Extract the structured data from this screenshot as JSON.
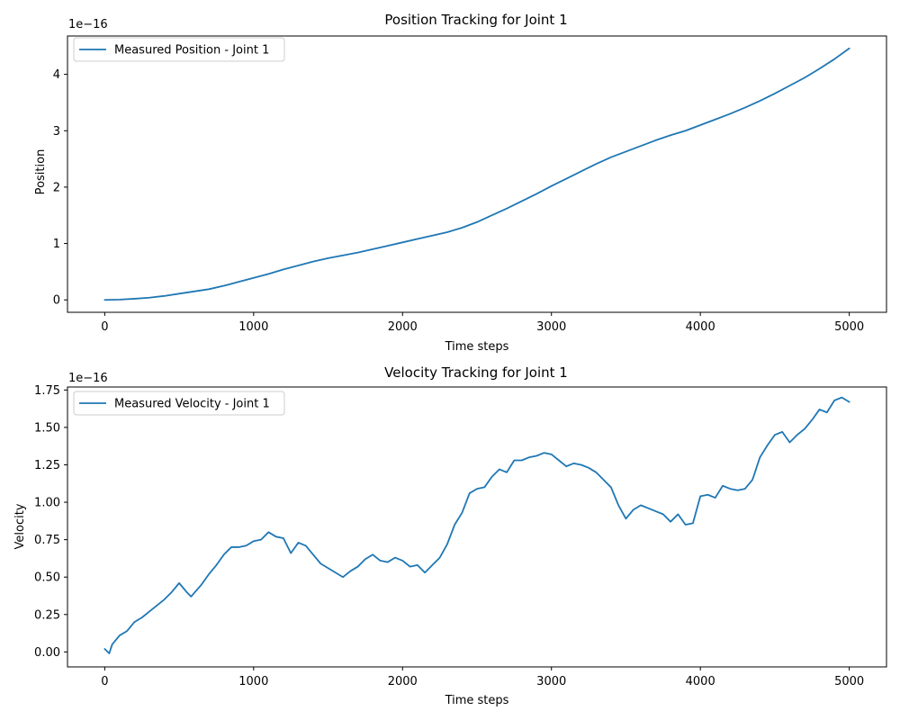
{
  "chart_data": [
    {
      "type": "line",
      "title": "Position Tracking for Joint 1",
      "xlabel": "Time steps",
      "ylabel": "Position",
      "offset_label": "1e−16",
      "xlim": [
        -250,
        5250
      ],
      "ylim": [
        -0.22,
        4.68
      ],
      "xticks": [
        0,
        1000,
        2000,
        3000,
        4000,
        5000
      ],
      "xtick_labels": [
        "0",
        "1000",
        "2000",
        "3000",
        "4000",
        "5000"
      ],
      "yticks": [
        0,
        1,
        2,
        3,
        4
      ],
      "ytick_labels": [
        "0",
        "1",
        "2",
        "3",
        "4"
      ],
      "legend_position": "upper-left",
      "color": "#1f77b4",
      "series": [
        {
          "name": "Measured Position - Joint 1",
          "x": [
            0,
            100,
            200,
            300,
            400,
            500,
            600,
            700,
            800,
            900,
            1000,
            1100,
            1200,
            1300,
            1400,
            1500,
            1600,
            1700,
            1800,
            1900,
            2000,
            2100,
            2200,
            2300,
            2400,
            2500,
            2600,
            2700,
            2800,
            2900,
            3000,
            3100,
            3200,
            3300,
            3400,
            3500,
            3600,
            3700,
            3800,
            3900,
            4000,
            4100,
            4200,
            4300,
            4400,
            4500,
            4600,
            4700,
            4800,
            4900,
            5000
          ],
          "values": [
            0.0,
            0.005,
            0.02,
            0.04,
            0.07,
            0.11,
            0.15,
            0.19,
            0.25,
            0.32,
            0.39,
            0.46,
            0.54,
            0.61,
            0.68,
            0.74,
            0.79,
            0.84,
            0.9,
            0.96,
            1.02,
            1.08,
            1.14,
            1.2,
            1.28,
            1.38,
            1.5,
            1.62,
            1.75,
            1.88,
            2.02,
            2.15,
            2.28,
            2.41,
            2.53,
            2.63,
            2.73,
            2.83,
            2.92,
            3.0,
            3.1,
            3.2,
            3.3,
            3.41,
            3.53,
            3.66,
            3.8,
            3.94,
            4.1,
            4.27,
            4.46
          ]
        }
      ]
    },
    {
      "type": "line",
      "title": "Velocity Tracking for Joint 1",
      "xlabel": "Time steps",
      "ylabel": "Velocity",
      "offset_label": "1e−16",
      "xlim": [
        -250,
        5250
      ],
      "ylim": [
        -0.1,
        1.77
      ],
      "xticks": [
        0,
        1000,
        2000,
        3000,
        4000,
        5000
      ],
      "xtick_labels": [
        "0",
        "1000",
        "2000",
        "3000",
        "4000",
        "5000"
      ],
      "yticks": [
        0.0,
        0.25,
        0.5,
        0.75,
        1.0,
        1.25,
        1.5,
        1.75
      ],
      "ytick_labels": [
        "0.00",
        "0.25",
        "0.50",
        "0.75",
        "1.00",
        "1.25",
        "1.50",
        "1.75"
      ],
      "legend_position": "upper-left",
      "color": "#1f77b4",
      "series": [
        {
          "name": "Measured Velocity - Joint 1",
          "x": [
            0,
            30,
            50,
            100,
            150,
            200,
            250,
            300,
            350,
            400,
            450,
            500,
            550,
            580,
            650,
            700,
            750,
            800,
            850,
            900,
            950,
            1000,
            1050,
            1100,
            1150,
            1200,
            1250,
            1300,
            1350,
            1400,
            1450,
            1500,
            1550,
            1600,
            1650,
            1700,
            1750,
            1800,
            1850,
            1900,
            1950,
            2000,
            2050,
            2100,
            2150,
            2200,
            2250,
            2300,
            2350,
            2400,
            2450,
            2500,
            2550,
            2600,
            2650,
            2700,
            2750,
            2800,
            2850,
            2900,
            2950,
            3000,
            3050,
            3100,
            3150,
            3200,
            3250,
            3300,
            3350,
            3400,
            3450,
            3500,
            3550,
            3600,
            3650,
            3700,
            3750,
            3800,
            3850,
            3900,
            3950,
            4000,
            4050,
            4100,
            4150,
            4200,
            4250,
            4300,
            4350,
            4400,
            4450,
            4500,
            4550,
            4600,
            4650,
            4700,
            4750,
            4800,
            4850,
            4900,
            4950,
            5000
          ],
          "values": [
            0.02,
            -0.01,
            0.05,
            0.11,
            0.14,
            0.2,
            0.23,
            0.27,
            0.31,
            0.35,
            0.4,
            0.46,
            0.4,
            0.37,
            0.45,
            0.52,
            0.58,
            0.65,
            0.7,
            0.7,
            0.71,
            0.74,
            0.75,
            0.8,
            0.77,
            0.76,
            0.66,
            0.73,
            0.71,
            0.65,
            0.59,
            0.56,
            0.53,
            0.5,
            0.54,
            0.57,
            0.62,
            0.65,
            0.61,
            0.6,
            0.63,
            0.61,
            0.57,
            0.58,
            0.53,
            0.58,
            0.63,
            0.72,
            0.85,
            0.93,
            1.06,
            1.09,
            1.1,
            1.17,
            1.22,
            1.2,
            1.28,
            1.28,
            1.3,
            1.31,
            1.33,
            1.32,
            1.28,
            1.24,
            1.26,
            1.25,
            1.23,
            1.2,
            1.15,
            1.1,
            0.98,
            0.89,
            0.95,
            0.98,
            0.96,
            0.94,
            0.92,
            0.87,
            0.92,
            0.85,
            0.86,
            1.04,
            1.05,
            1.03,
            1.11,
            1.09,
            1.08,
            1.09,
            1.15,
            1.3,
            1.38,
            1.45,
            1.47,
            1.4,
            1.45,
            1.49,
            1.55,
            1.62,
            1.6,
            1.68,
            1.7,
            1.67
          ]
        }
      ]
    }
  ]
}
